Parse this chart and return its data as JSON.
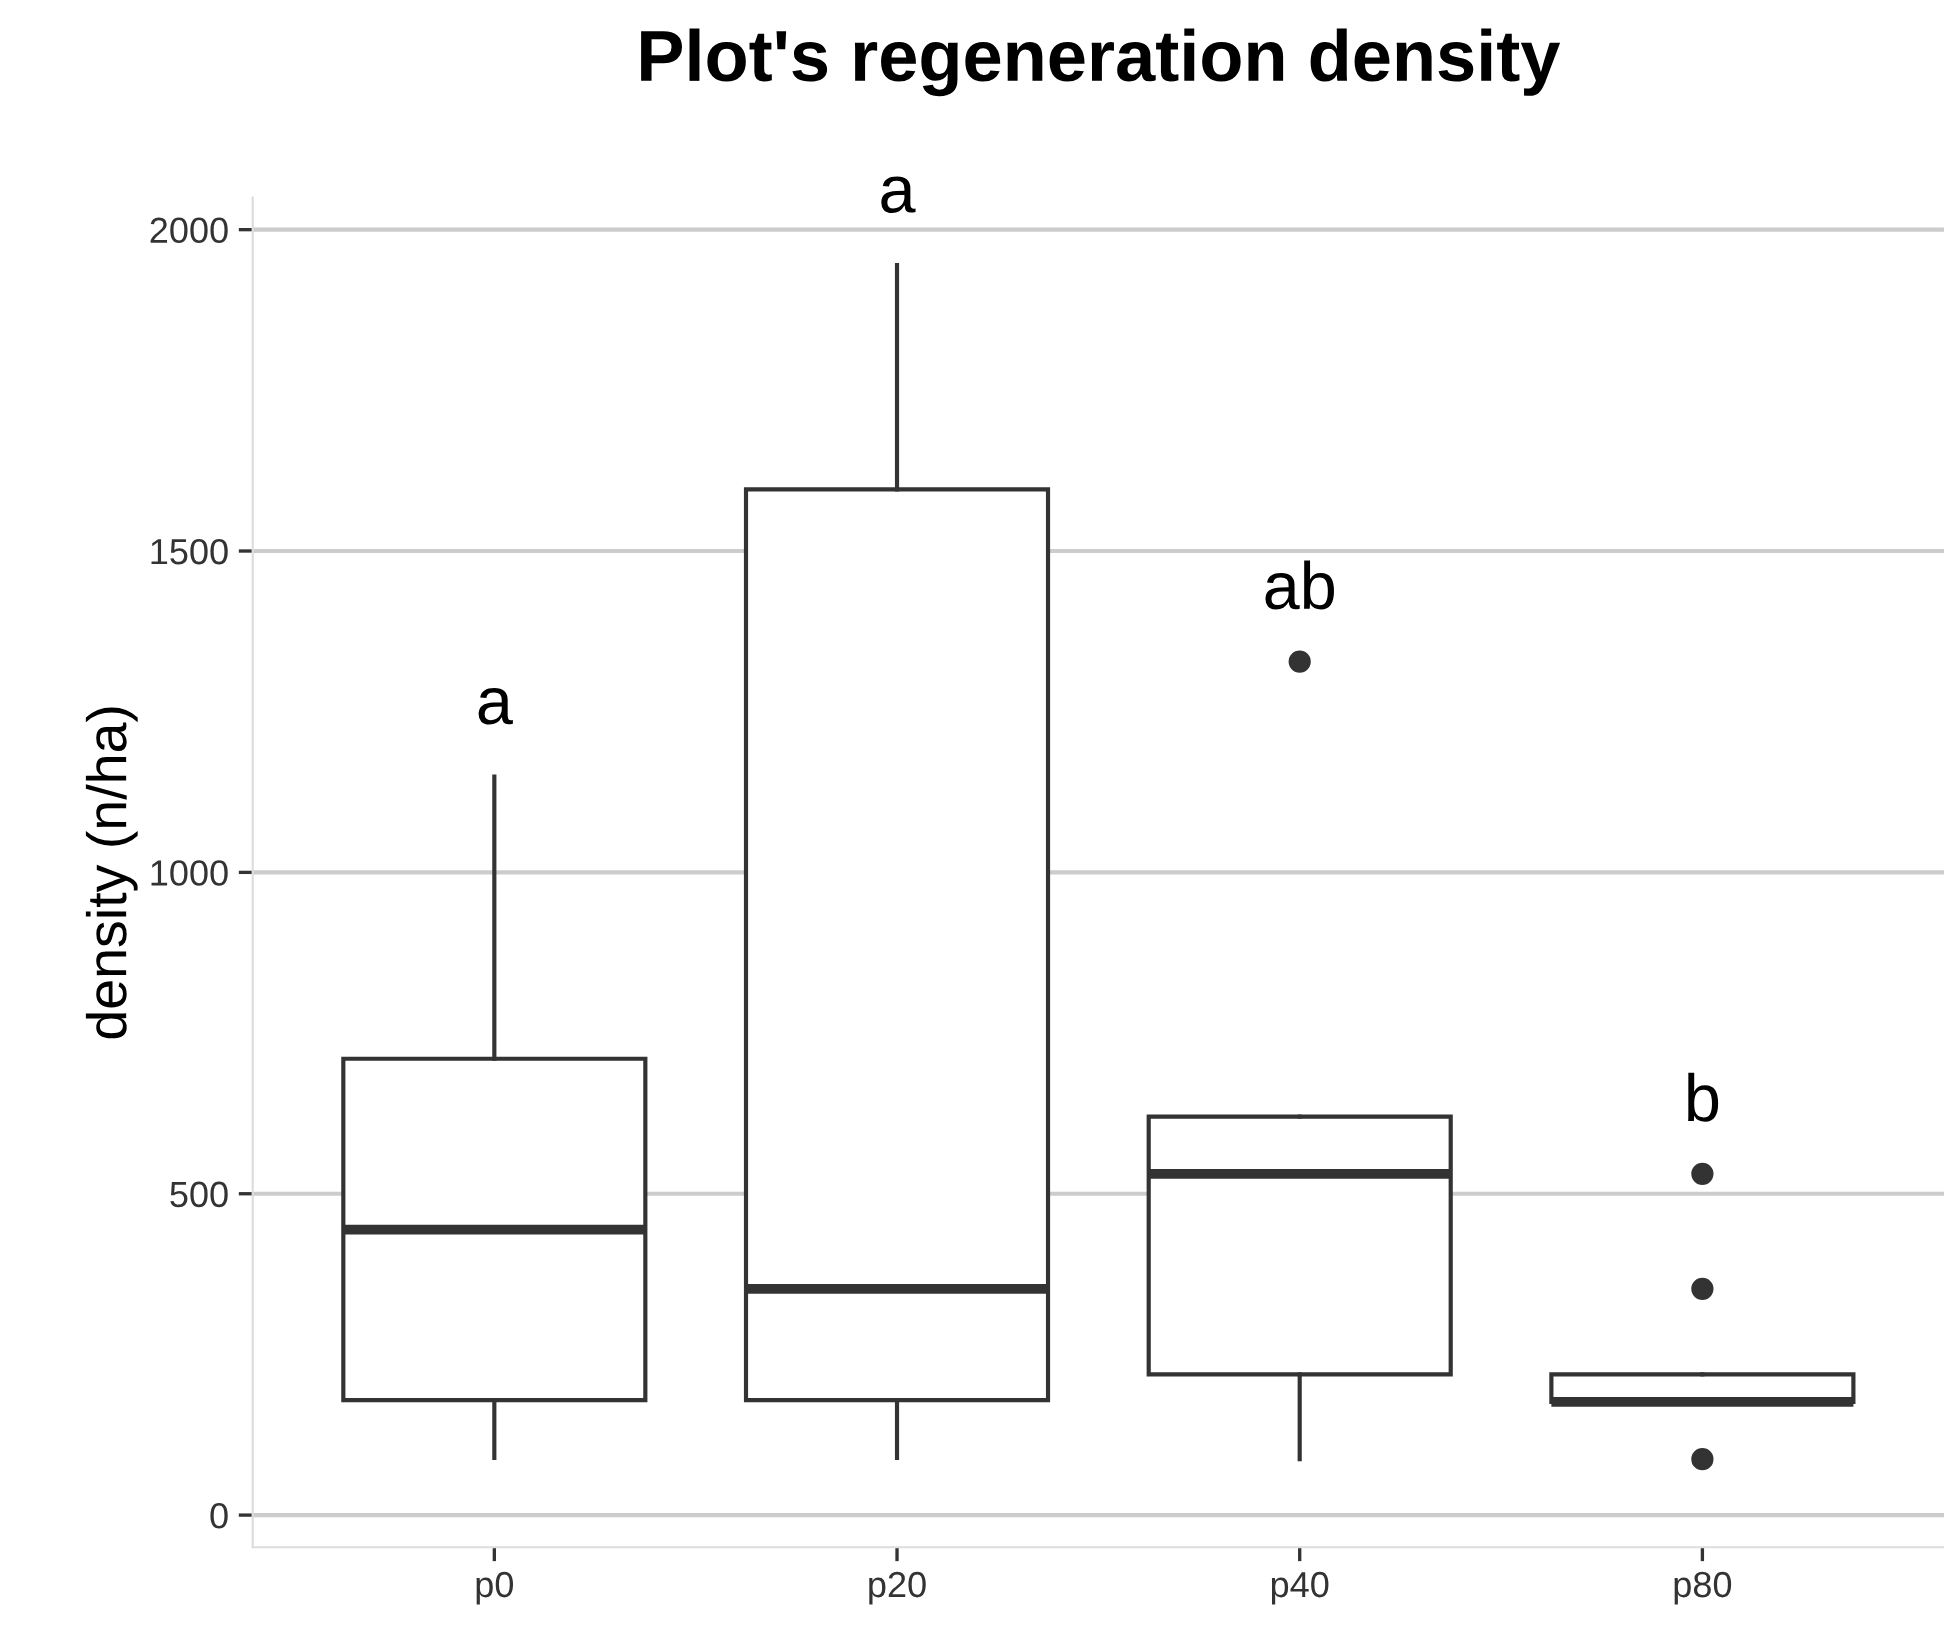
{
  "chart_data": {
    "type": "box",
    "title": "Plot's regeneration density",
    "ylabel": "density (n/ha)",
    "categories": [
      "p0",
      "p20",
      "p40",
      "p80"
    ],
    "boxes": [
      {
        "low": 89,
        "q1": 179,
        "median": 444,
        "q3": 710,
        "high": 1149
      },
      {
        "low": 89,
        "q1": 179,
        "median": 352,
        "q3": 1596,
        "high": 1945
      },
      {
        "low": 87,
        "q1": 219,
        "median": 531,
        "q3": 620,
        "high": 620,
        "outliers": [
          1328
        ]
      },
      {
        "low": 176,
        "q1": 176,
        "median": 176,
        "q3": 219,
        "high": 219,
        "outliers": [
          531,
          352,
          87
        ]
      }
    ],
    "ylim": [
      -50,
      2050
    ],
    "yticks": [
      0,
      500,
      1000,
      1500,
      2000
    ],
    "grid": "y",
    "legend": false,
    "annotations": [
      "a",
      "a",
      "ab",
      "b"
    ]
  }
}
